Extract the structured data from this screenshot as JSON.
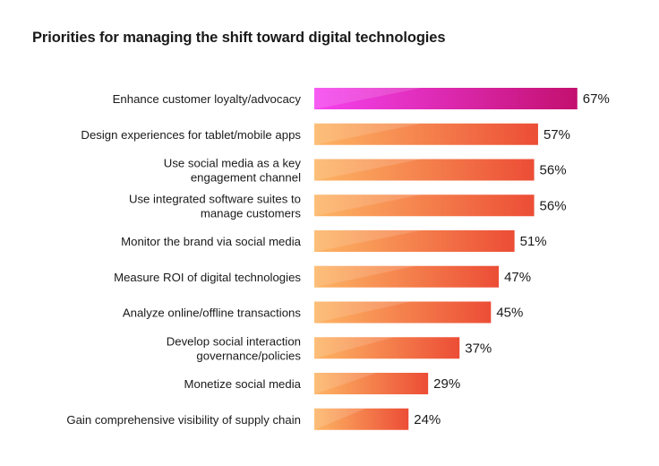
{
  "title": "Priorities for managing the shift toward digital technologies",
  "colors": {
    "highlight_start": "#f542f0",
    "highlight_end": "#c3106f",
    "bar_start": "#fdb564",
    "bar_end": "#ec4d36"
  },
  "chart_data": {
    "type": "bar",
    "orientation": "horizontal",
    "title": "Priorities for managing the shift toward digital technologies",
    "categories": [
      [
        "Enhance customer loyalty/advocacy"
      ],
      [
        "Design experiences for tablet/mobile apps"
      ],
      [
        "Use social media as a key",
        "engagement channel"
      ],
      [
        "Use integrated software suites to",
        "manage customers"
      ],
      [
        "Monitor the brand via social media"
      ],
      [
        "Measure ROI of digital technologies"
      ],
      [
        "Analyze online/offline transactions"
      ],
      [
        "Develop social interaction",
        "governance/policies"
      ],
      [
        "Monetize social media"
      ],
      [
        "Gain comprehensive visibility of supply chain"
      ]
    ],
    "values": [
      67,
      57,
      56,
      56,
      51,
      47,
      45,
      37,
      29,
      24
    ],
    "value_labels": [
      "67%",
      "57%",
      "56%",
      "56%",
      "51%",
      "47%",
      "45%",
      "37%",
      "29%",
      "24%"
    ],
    "unit": "%",
    "highlighted_index": 0,
    "xlim": [
      0,
      100
    ],
    "grid": false,
    "legend": false
  }
}
